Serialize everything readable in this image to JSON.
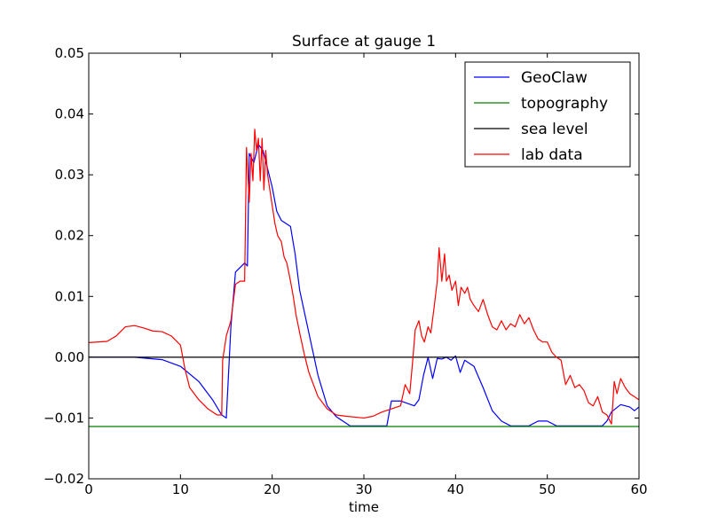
{
  "chart_data": {
    "type": "line",
    "title": "Surface at gauge 1",
    "xlabel": "time",
    "ylabel": "",
    "xlim": [
      0,
      60
    ],
    "ylim": [
      -0.02,
      0.05
    ],
    "xticks": [
      0,
      10,
      20,
      30,
      40,
      50,
      60
    ],
    "xtick_labels": [
      "0",
      "10",
      "20",
      "30",
      "40",
      "50",
      "60"
    ],
    "yticks": [
      -0.02,
      -0.01,
      0.0,
      0.01,
      0.02,
      0.03,
      0.04,
      0.05
    ],
    "ytick_labels": [
      "−0.02",
      "−0.01",
      "0.00",
      "0.01",
      "0.02",
      "0.03",
      "0.04",
      "0.05"
    ],
    "grid": false,
    "legend_position": "top-right",
    "series": [
      {
        "name": "GeoClaw",
        "color": "#0000ff",
        "x": [
          0,
          5,
          6.5,
          8,
          10,
          12,
          13.5,
          14.5,
          15,
          15.5,
          16,
          17,
          17.3,
          17.5,
          18,
          18.5,
          19,
          19.5,
          20,
          20.5,
          21,
          22,
          22.5,
          23,
          24,
          25,
          26,
          27,
          28,
          28.5,
          30,
          32,
          32.5,
          33,
          34,
          35.5,
          36,
          36.5,
          37,
          37.5,
          38,
          38.5,
          39,
          39.5,
          40,
          40.5,
          41,
          41.5,
          42,
          43,
          44,
          45,
          46,
          47,
          48,
          49,
          50,
          51,
          52,
          53,
          55,
          56,
          56.5,
          57,
          58,
          59,
          59.5,
          60
        ],
        "y": [
          0.0,
          0.0,
          -0.0002,
          -0.0004,
          -0.0015,
          -0.004,
          -0.007,
          -0.0095,
          -0.01,
          0.005,
          0.014,
          0.0155,
          0.015,
          0.0335,
          0.032,
          0.035,
          0.034,
          0.031,
          0.028,
          0.024,
          0.0225,
          0.0215,
          0.017,
          0.011,
          0.004,
          -0.003,
          -0.008,
          -0.0098,
          -0.0108,
          -0.0113,
          -0.0113,
          -0.0113,
          -0.0113,
          -0.0072,
          -0.0072,
          -0.008,
          -0.007,
          -0.003,
          0.0,
          -0.0035,
          -0.0002,
          -0.0003,
          0.0,
          -0.0005,
          0.0002,
          -0.0025,
          -0.0005,
          -0.001,
          -0.0015,
          -0.005,
          -0.0088,
          -0.0105,
          -0.0113,
          -0.0113,
          -0.0113,
          -0.0105,
          -0.0105,
          -0.0113,
          -0.0113,
          -0.0113,
          -0.0113,
          -0.0113,
          -0.0105,
          -0.009,
          -0.0078,
          -0.0082,
          -0.0088,
          -0.0082
        ]
      },
      {
        "name": "topography",
        "color": "#008000",
        "x": [
          0,
          60
        ],
        "y": [
          -0.0114,
          -0.0114
        ]
      },
      {
        "name": "sea level",
        "color": "#000000",
        "x": [
          0,
          60
        ],
        "y": [
          0.0,
          0.0
        ]
      },
      {
        "name": "lab data",
        "color": "#ff0000",
        "x": [
          0,
          2,
          3,
          4,
          5,
          6,
          7,
          8,
          9,
          10,
          10.5,
          11,
          12,
          13,
          14,
          14.5,
          14.6,
          15,
          15.5,
          16,
          16.5,
          17,
          17.2,
          17.5,
          17.7,
          17.9,
          18.1,
          18.3,
          18.5,
          18.7,
          18.9,
          19.1,
          19.3,
          19.5,
          19.7,
          20,
          20.3,
          20.6,
          21,
          21.3,
          21.6,
          22,
          22.3,
          22.6,
          23,
          23.5,
          24,
          25,
          26,
          27,
          28,
          30,
          31,
          32,
          33,
          34,
          34.5,
          35,
          35.3,
          35.6,
          36,
          36.3,
          36.6,
          37,
          37.3,
          37.6,
          38,
          38.2,
          38.5,
          38.8,
          39,
          39.3,
          39.6,
          40,
          40.3,
          40.6,
          41,
          41.3,
          41.6,
          42,
          42.5,
          43,
          43.5,
          44,
          44.5,
          45,
          45.5,
          46,
          46.5,
          47,
          47.5,
          48,
          48.5,
          49,
          49.5,
          50,
          50.5,
          51,
          51.5,
          52,
          52.5,
          53,
          53.5,
          54,
          54.5,
          55,
          55.5,
          56,
          56.5,
          57,
          57.3,
          57.6,
          58,
          58.5,
          59,
          59.5,
          60
        ],
        "y": [
          0.0024,
          0.0026,
          0.0035,
          0.005,
          0.0052,
          0.0048,
          0.0043,
          0.0042,
          0.0035,
          0.002,
          -0.002,
          -0.005,
          -0.007,
          -0.0085,
          -0.0095,
          -0.0095,
          -0.0005,
          0.0035,
          0.006,
          0.012,
          0.0125,
          0.0125,
          0.0345,
          0.0255,
          0.0335,
          0.029,
          0.0375,
          0.034,
          0.036,
          0.029,
          0.036,
          0.0275,
          0.034,
          0.03,
          0.028,
          0.025,
          0.022,
          0.02,
          0.019,
          0.0165,
          0.0155,
          0.0125,
          0.01,
          0.007,
          0.004,
          0.0005,
          -0.0025,
          -0.0065,
          -0.0085,
          -0.0095,
          -0.0097,
          -0.01,
          -0.0097,
          -0.009,
          -0.0085,
          -0.008,
          -0.0045,
          -0.006,
          -0.001,
          0.0045,
          0.006,
          0.0035,
          0.0025,
          0.005,
          0.004,
          0.0075,
          0.0125,
          0.018,
          0.0125,
          0.017,
          0.0125,
          0.0135,
          0.011,
          0.0125,
          0.0085,
          0.0115,
          0.0105,
          0.0115,
          0.0095,
          0.0085,
          0.0075,
          0.0095,
          0.007,
          0.005,
          0.0045,
          0.006,
          0.0045,
          0.0055,
          0.005,
          0.007,
          0.0055,
          0.0065,
          0.0045,
          0.003,
          0.0025,
          0.0025,
          0.0008,
          0.0,
          -0.0005,
          -0.0045,
          -0.003,
          -0.005,
          -0.0045,
          -0.0055,
          -0.0075,
          -0.008,
          -0.0065,
          -0.009,
          -0.0095,
          -0.011,
          -0.004,
          -0.006,
          -0.0035,
          -0.005,
          -0.006,
          -0.0065,
          -0.007
        ]
      }
    ]
  }
}
